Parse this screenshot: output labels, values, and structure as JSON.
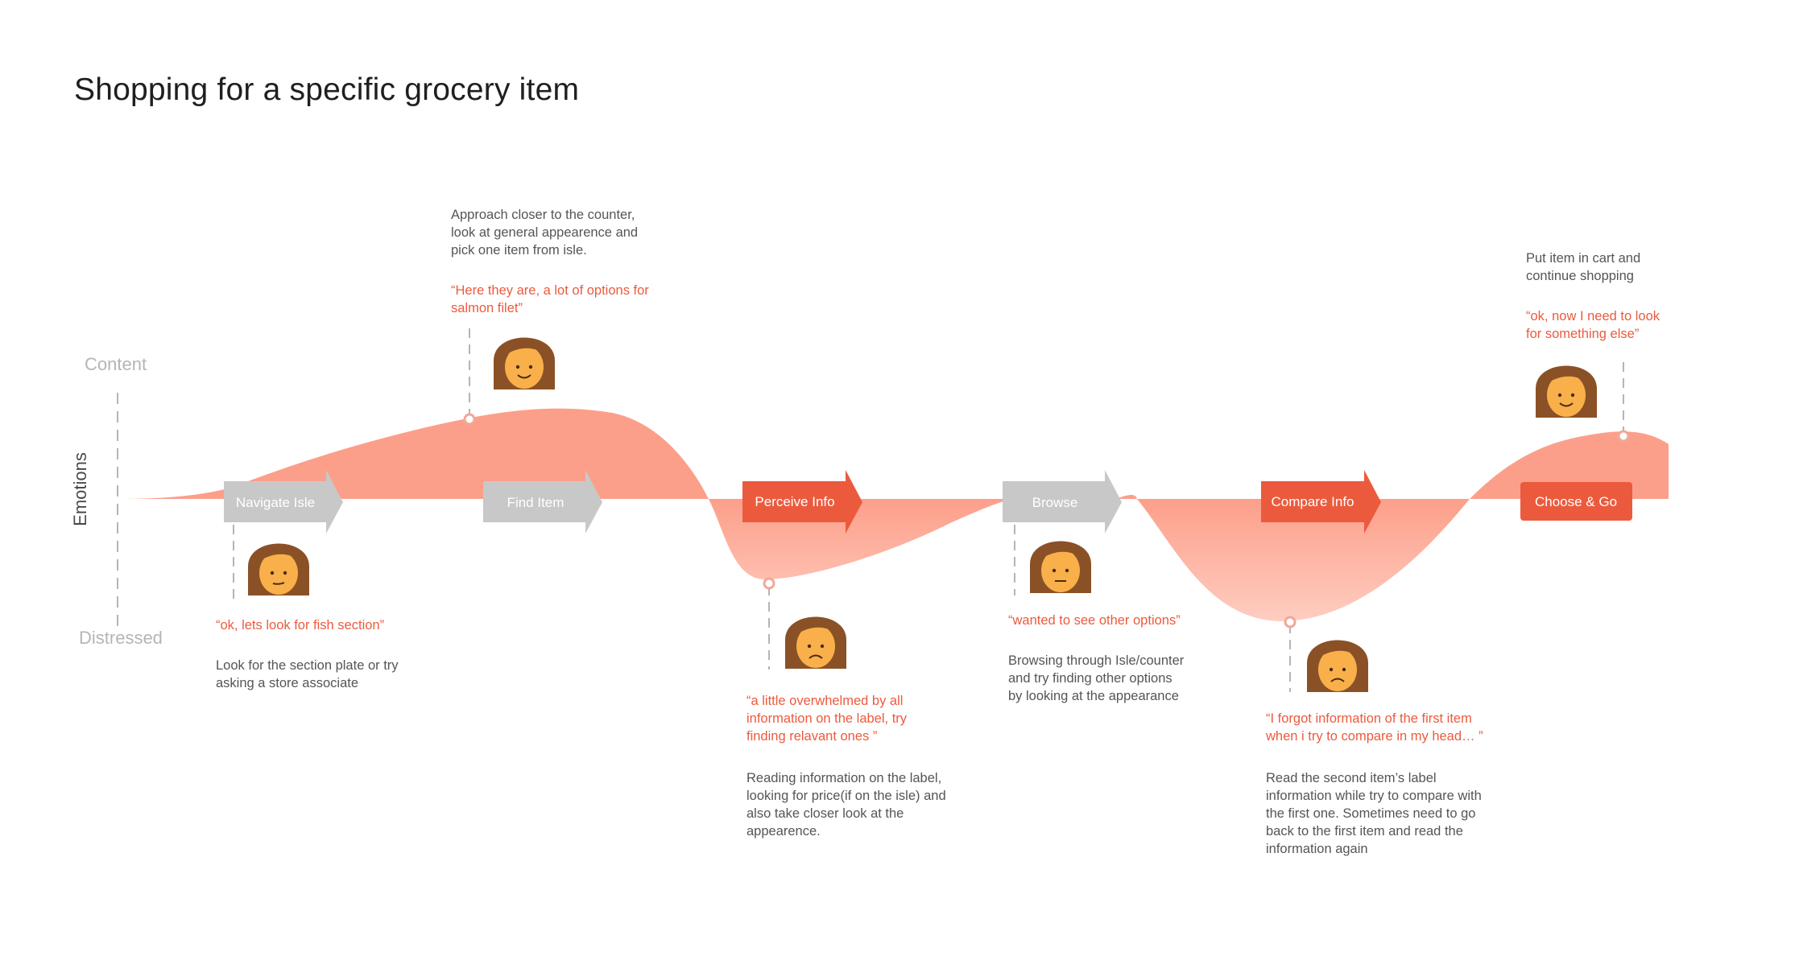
{
  "title": "Shopping for a specific grocery item",
  "axis": {
    "top_label": "Content",
    "bottom_label": "Distressed",
    "vertical_label": "Emotions"
  },
  "colors": {
    "curve_fill": "#fc9f8a",
    "curve_fill_light": "#ffd8cf",
    "accent": "#ec5a3d",
    "inactive_step": "#c8c8c8",
    "text_dark": "#555555",
    "face": "#f9b04a",
    "hair": "#8a5127"
  },
  "steps": [
    {
      "label": "Navigate Isle",
      "style": "inactive",
      "icon": "arrow-step-icon"
    },
    {
      "label": "Find Item",
      "style": "inactive",
      "icon": "arrow-step-icon"
    },
    {
      "label": "Perceive Info",
      "style": "active",
      "icon": "arrow-step-icon"
    },
    {
      "label": "Browse",
      "style": "inactive",
      "icon": "arrow-step-icon"
    },
    {
      "label": "Compare Info",
      "style": "active",
      "icon": "arrow-step-icon"
    },
    {
      "label": "Choose & Go",
      "style": "active",
      "icon": "end-step-button"
    }
  ],
  "moments": [
    {
      "quote": "“ok, lets look for fish section”",
      "description": "Look for the section plate or try\nasking a store associate",
      "mood": "neutral",
      "avatar_icon": "woman-avatar-icon"
    },
    {
      "description": "Approach closer to the counter,\nlook at general appearence and\npick one item from isle.",
      "quote": "“Here they are, a lot of options for\nsalmon filet”",
      "mood": "happy",
      "avatar_icon": "woman-avatar-icon"
    },
    {
      "quote": "“a little overwhelmed by all\ninformation on the label, try\nfinding relavant ones ”",
      "description": "Reading information on the label,\nlooking for price(if on the isle) and\nalso take closer look at the\nappearence.",
      "mood": "sad",
      "avatar_icon": "woman-avatar-icon"
    },
    {
      "quote": "“wanted to see other options”",
      "description": "Browsing through Isle/counter\nand try finding other options\nby looking at the appearance",
      "mood": "neutral",
      "avatar_icon": "woman-avatar-icon"
    },
    {
      "quote": "“I forgot information of the first item\nwhen i try to compare in my head… ”",
      "description": "Read the second item’s label\ninformation while try to compare with\nthe first one. Sometimes need to go\nback to the first item and read the\ninformation again",
      "mood": "sad",
      "avatar_icon": "woman-avatar-icon"
    },
    {
      "description": "Put item in cart and\ncontinue shopping",
      "quote": "“ok, now I need to look\nfor something else”",
      "mood": "happy",
      "avatar_icon": "woman-avatar-icon"
    }
  ]
}
